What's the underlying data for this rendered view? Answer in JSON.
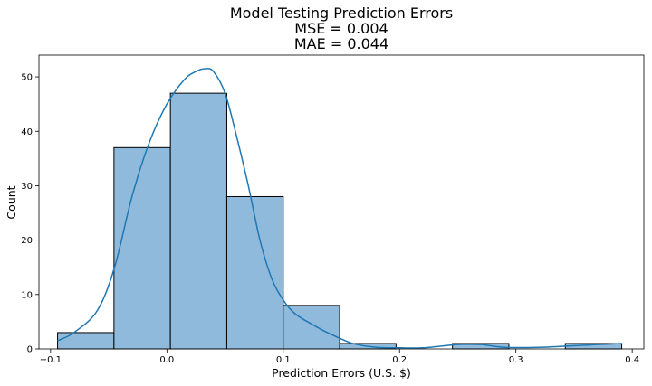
{
  "chart_data": {
    "type": "histogram",
    "title_lines": [
      "Model Testing Prediction Errors",
      "MSE = 0.004",
      "MAE = 0.044"
    ],
    "xlabel": "Prediction Errors (U.S. $)",
    "ylabel": "Count",
    "xlim": [
      -0.11,
      0.41
    ],
    "ylim": [
      0,
      54
    ],
    "xticks": [
      -0.1,
      0.0,
      0.1,
      0.2,
      0.3,
      0.4
    ],
    "xtick_labels": [
      "−0.1",
      "0.0",
      "0.1",
      "0.2",
      "0.3",
      "0.4"
    ],
    "yticks": [
      0,
      10,
      20,
      30,
      40,
      50
    ],
    "ytick_labels": [
      "0",
      "10",
      "20",
      "30",
      "40",
      "50"
    ],
    "bins": [
      {
        "x0": -0.094,
        "x1": -0.0455,
        "count": 3
      },
      {
        "x0": -0.0455,
        "x1": 0.003,
        "count": 37
      },
      {
        "x0": 0.003,
        "x1": 0.0515,
        "count": 47
      },
      {
        "x0": 0.0515,
        "x1": 0.1,
        "count": 28
      },
      {
        "x0": 0.1,
        "x1": 0.1485,
        "count": 8
      },
      {
        "x0": 0.1485,
        "x1": 0.197,
        "count": 1
      },
      {
        "x0": 0.197,
        "x1": 0.2455,
        "count": 0
      },
      {
        "x0": 0.2455,
        "x1": 0.294,
        "count": 1
      },
      {
        "x0": 0.294,
        "x1": 0.3425,
        "count": 0
      },
      {
        "x0": 0.3425,
        "x1": 0.391,
        "count": 1
      }
    ],
    "kde": {
      "x": [
        -0.094,
        -0.08,
        -0.06,
        -0.045,
        -0.03,
        -0.015,
        0.0,
        0.015,
        0.025,
        0.033,
        0.04,
        0.05,
        0.06,
        0.07,
        0.08,
        0.09,
        0.1,
        0.11,
        0.125,
        0.14,
        0.16,
        0.18,
        0.2,
        0.22,
        0.25,
        0.27,
        0.29,
        0.32,
        0.35,
        0.37,
        0.391
      ],
      "y": [
        1.5,
        3,
        7,
        15,
        28,
        38,
        45,
        49.5,
        51,
        51.5,
        51,
        47,
        39,
        30,
        20,
        13,
        9,
        6.5,
        4.5,
        2.8,
        1,
        0.3,
        0.2,
        0.2,
        0.8,
        0.8,
        0.3,
        0.3,
        0.6,
        0.8,
        1
      ]
    },
    "bar_color": "#8fbadb",
    "bar_edge_color": "#000000",
    "kde_color": "#1f77b4",
    "grid": false,
    "legend": "none"
  }
}
